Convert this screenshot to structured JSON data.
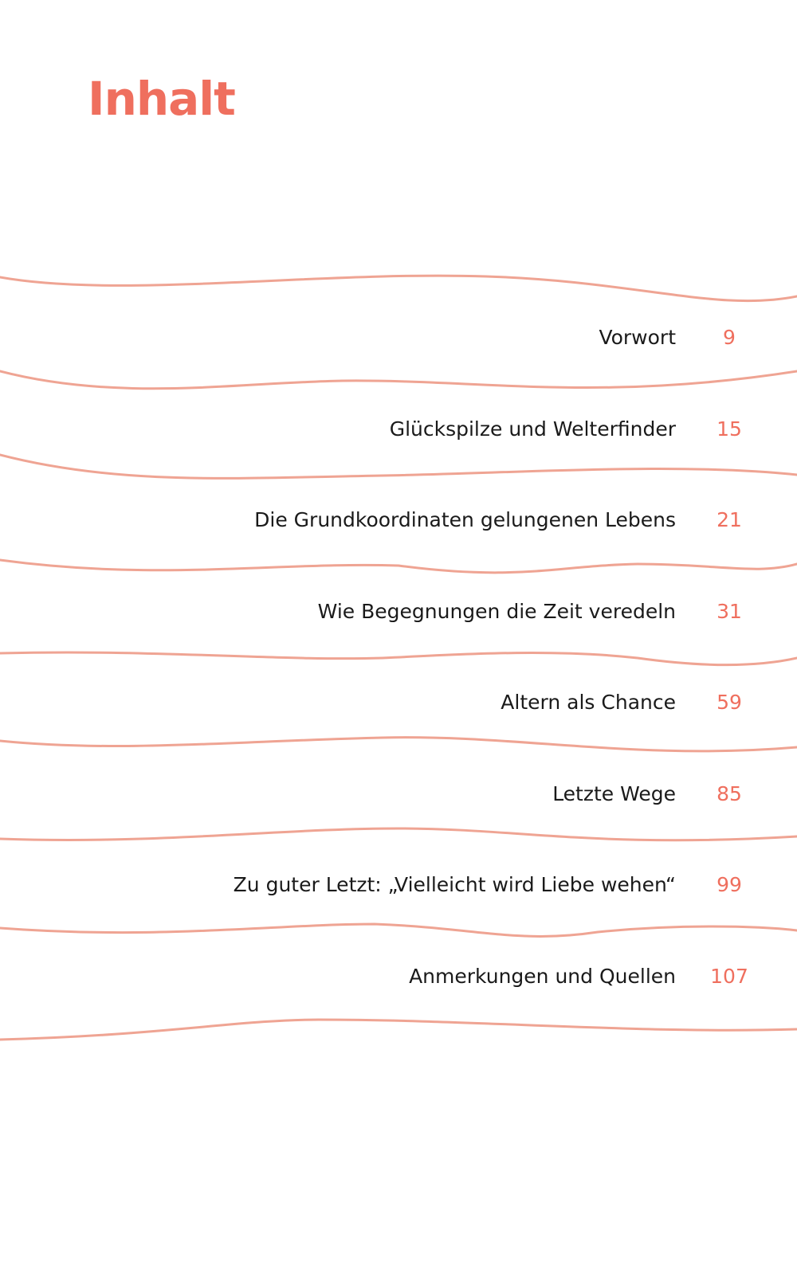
{
  "title": "Inhalt",
  "entries": [
    {
      "title": "Vorwort",
      "page": "9"
    },
    {
      "title": "Glückspilze und Welterfinder",
      "page": "15"
    },
    {
      "title": "Die Grundkoordinaten gelungenen Lebens",
      "page": "21"
    },
    {
      "title": "Wie Begegnungen die Zeit veredeln",
      "page": "31"
    },
    {
      "title": "Altern als Chance",
      "page": "59"
    },
    {
      "title": "Letzte Wege",
      "page": "85"
    },
    {
      "title": "Zu guter Letzt: „Vielleicht wird Liebe wehen“",
      "page": "99"
    },
    {
      "title": "Anmerkungen und Quellen",
      "page": "107"
    }
  ],
  "colors": {
    "accent": "#ef6f5e",
    "wave": "#efa493",
    "text": "#1a1a1a"
  }
}
